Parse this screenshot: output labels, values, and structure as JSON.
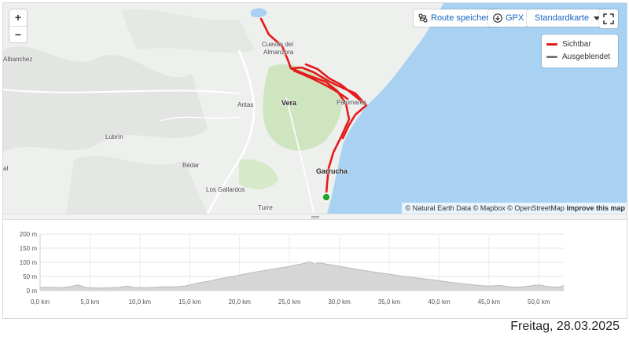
{
  "map": {
    "zoom_in": "+",
    "zoom_out": "−",
    "save_route_label": "Route speichern",
    "gpx_label": "GPX",
    "style_label": "Standardkarte",
    "legend": {
      "visible_label": "Sichtbar",
      "visible_color": "#e41a1c",
      "hidden_label": "Ausgeblendet",
      "hidden_color": "#777777"
    },
    "attribution": {
      "text": "© Natural Earth Data © Mapbox © OpenStreetMap",
      "link": "Improve this map"
    },
    "places": {
      "cuevas": "Cuevas del",
      "almanzora": "Almanzora",
      "vera": "Vera",
      "antas": "Antas",
      "palomares": "Palomares",
      "lubrin": "Lubrín",
      "bedar": "Bédar",
      "garrucha": "Garrucha",
      "los_gallardos": "Los Gallardos",
      "turre": "Turre",
      "albanchez": "Albanchez",
      "edge_label": "al"
    },
    "colors": {
      "sea": "#a9d2f2",
      "land": "#eef0ee",
      "green": "#cfe5c0",
      "route": "#e41a1c",
      "start": "#22a52b"
    }
  },
  "chart_data": {
    "type": "area",
    "ylim": [
      0,
      200
    ],
    "xlim": [
      0,
      52.5
    ],
    "yticks": [
      "0 m",
      "50 m",
      "100 m",
      "150 m",
      "200 m"
    ],
    "ytick_values": [
      0,
      50,
      100,
      150,
      200
    ],
    "xticks": [
      "0,0 km",
      "5,0 km",
      "10,0 km",
      "15,0 km",
      "20,0 km",
      "25,0 km",
      "30,0 km",
      "35,0 km",
      "40,0 km",
      "45,0 km",
      "50,0 km"
    ],
    "xtick_values": [
      0,
      5,
      10,
      15,
      20,
      25,
      30,
      35,
      40,
      45,
      50
    ],
    "fill_color": "#d6d6d6",
    "line_color": "#bbbbbb",
    "x": [
      0,
      1,
      2,
      3,
      3.8,
      4.5,
      5,
      6,
      7,
      8,
      8.7,
      9.5,
      10.5,
      11.5,
      12.5,
      13.5,
      14.5,
      15,
      16,
      17,
      18,
      19,
      20,
      21,
      22,
      23,
      24,
      25,
      25.8,
      26.5,
      27,
      27.5,
      28,
      29,
      30,
      31,
      32,
      33,
      34,
      35,
      36,
      37,
      38,
      39,
      40,
      41,
      42,
      43,
      44,
      45,
      46,
      47,
      48,
      49,
      50,
      51,
      52,
      52.5
    ],
    "y": [
      12,
      12,
      10,
      14,
      20,
      12,
      10,
      9,
      10,
      12,
      16,
      11,
      10,
      12,
      14,
      13,
      16,
      20,
      28,
      34,
      42,
      48,
      55,
      62,
      68,
      74,
      80,
      85,
      92,
      96,
      102,
      94,
      98,
      92,
      86,
      80,
      74,
      68,
      63,
      58,
      53,
      48,
      44,
      40,
      35,
      30,
      26,
      22,
      18,
      16,
      18,
      14,
      12,
      16,
      20,
      14,
      12,
      18
    ]
  },
  "footer": {
    "date": "Freitag, 28.03.2025"
  }
}
